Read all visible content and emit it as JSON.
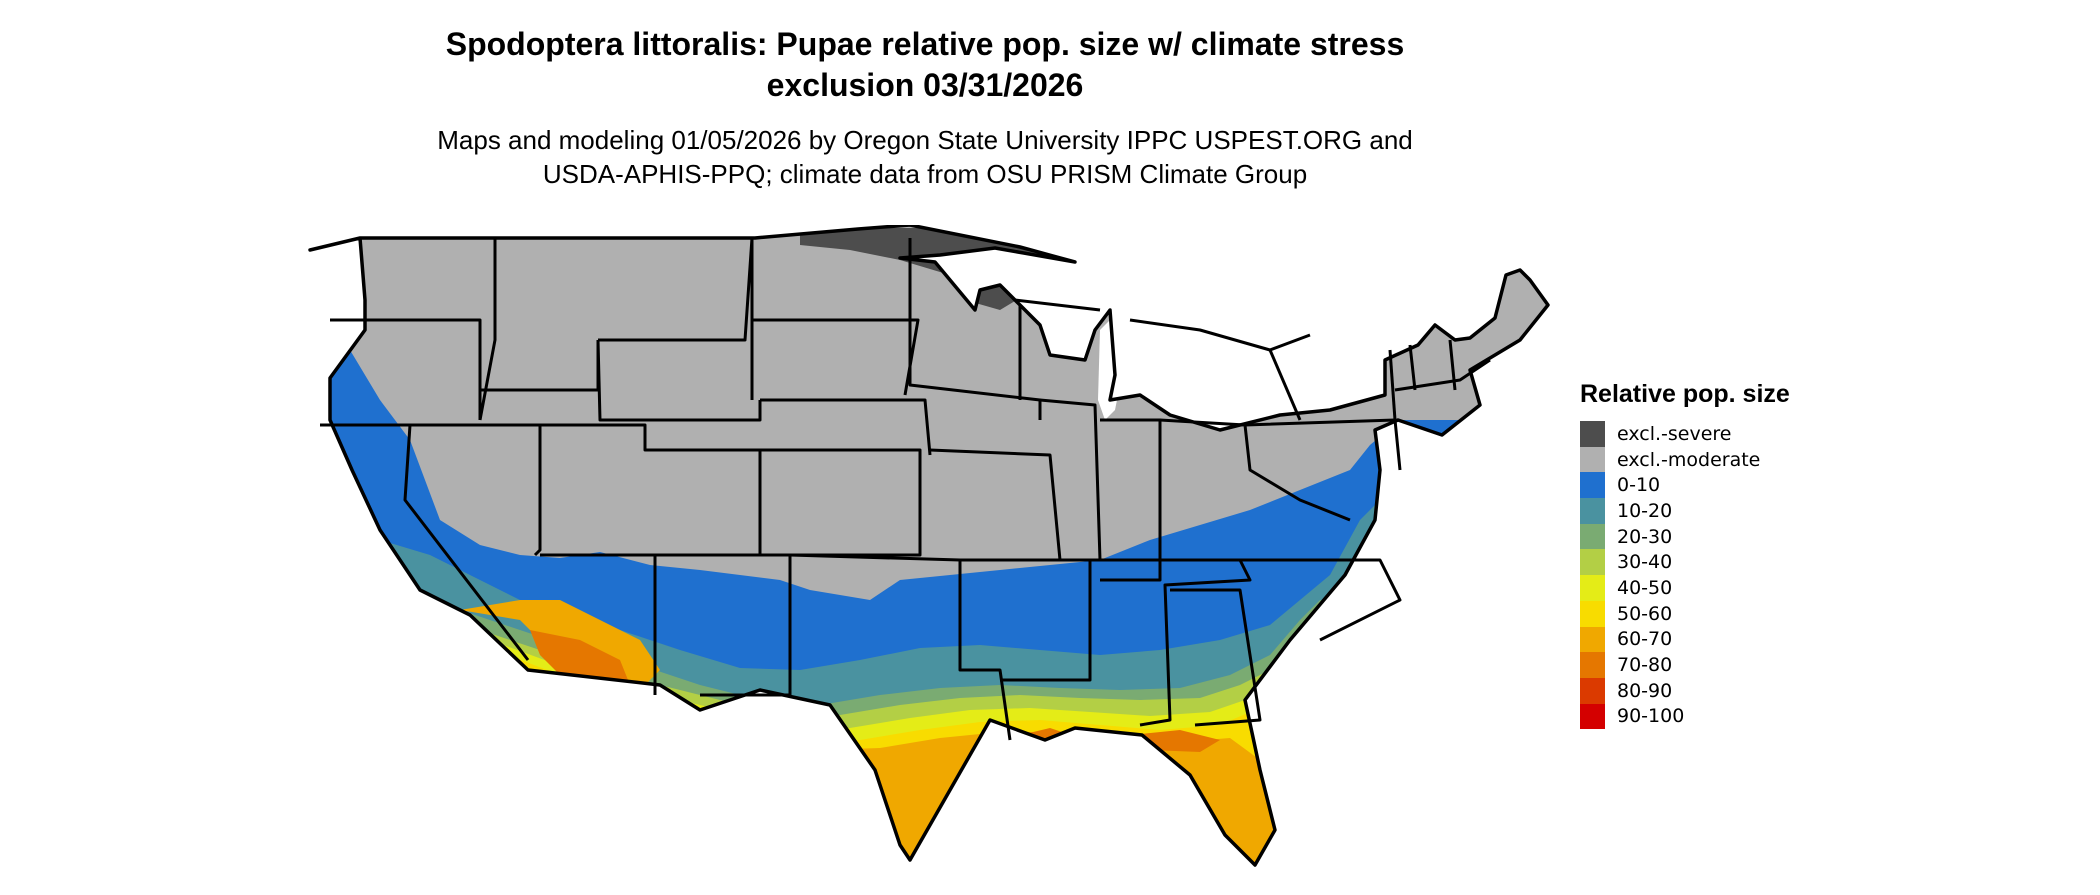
{
  "title_line1": "Spodoptera littoralis: Pupae relative pop. size w/ climate stress",
  "title_line2": "exclusion 03/31/2026",
  "subtitle_line1": "Maps and modeling 01/05/2026 by Oregon State University IPPC USPEST.ORG and",
  "subtitle_line2": "USDA-APHIS-PPQ; climate data from OSU PRISM Climate Group",
  "legend": {
    "title": "Relative pop. size",
    "items": [
      {
        "label": "excl.-severe",
        "color": "#4d4d4d"
      },
      {
        "label": "excl.-moderate",
        "color": "#b0b0b0"
      },
      {
        "label": "0-10",
        "color": "#1f70cf"
      },
      {
        "label": "10-20",
        "color": "#4a92a0"
      },
      {
        "label": "20-30",
        "color": "#7aab72"
      },
      {
        "label": "30-40",
        "color": "#b3cf45"
      },
      {
        "label": "40-50",
        "color": "#e4ec17"
      },
      {
        "label": "50-60",
        "color": "#f8dc00"
      },
      {
        "label": "60-70",
        "color": "#f0a800"
      },
      {
        "label": "70-80",
        "color": "#e57700"
      },
      {
        "label": "80-90",
        "color": "#db3a00"
      },
      {
        "label": "90-100",
        "color": "#d40000"
      }
    ]
  }
}
